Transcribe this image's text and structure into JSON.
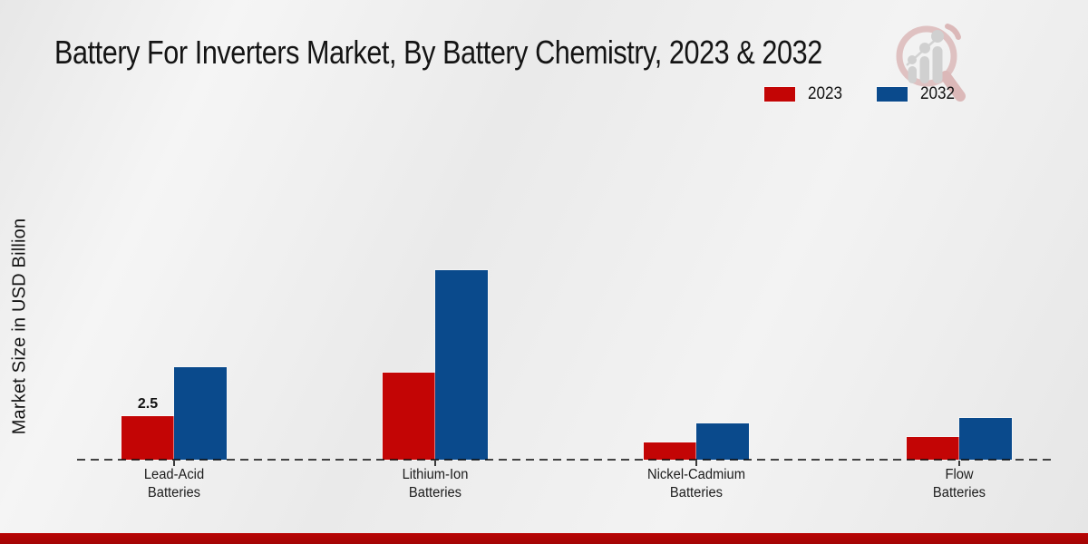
{
  "header": {
    "title": "Battery For Inverters Market, By Battery Chemistry, 2023 & 2032"
  },
  "y_axis": {
    "label": "Market Size in USD Billion"
  },
  "legend": {
    "items": [
      {
        "label": "2023",
        "color": "#c30505"
      },
      {
        "label": "2032",
        "color": "#0a4a8c"
      }
    ]
  },
  "chart_data": {
    "type": "bar",
    "title": "Battery For Inverters Market, By Battery Chemistry, 2023 & 2032",
    "xlabel": "",
    "ylabel": "Market Size in USD Billion",
    "categories": [
      "Lead-Acid Batteries",
      "Lithium-Ion Batteries",
      "Nickel-Cadmium Batteries",
      "Flow Batteries"
    ],
    "series": [
      {
        "name": "2023",
        "color": "#c30505",
        "values": [
          2.5,
          5.0,
          1.0,
          1.3
        ]
      },
      {
        "name": "2032",
        "color": "#0a4a8c",
        "values": [
          5.3,
          10.9,
          2.1,
          2.4
        ]
      }
    ],
    "data_labels": [
      {
        "series": "2023",
        "category": "Lead-Acid Batteries",
        "text": "2.5"
      }
    ],
    "ylim": [
      0,
      12
    ],
    "grid": false,
    "y_ticks_visible": false,
    "legend_position": "top-right",
    "x_axis_style": "dashed-zero-line"
  },
  "watermark": {
    "icon": "magnifier-growth-chart-logo"
  },
  "footer": {
    "accent_color": "#b90404"
  }
}
